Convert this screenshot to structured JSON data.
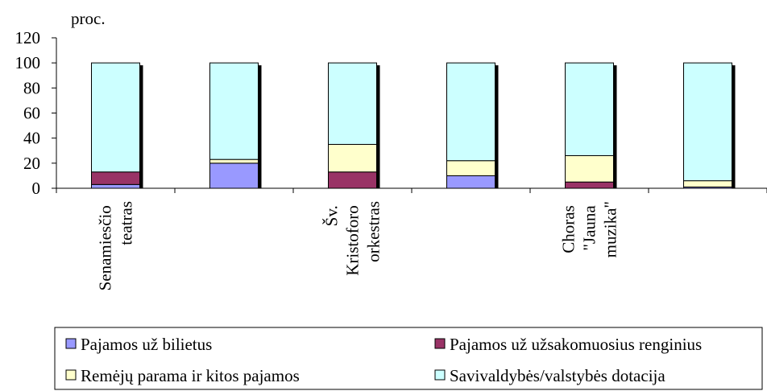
{
  "chart_data": {
    "type": "stacked_bar",
    "ylabel": "proc.",
    "categories": [
      "Senamiesčio teatras",
      null,
      "Šv. Kristoforo orkestras",
      null,
      "Choras \"Jauna muzika\"",
      null
    ],
    "series": [
      {
        "name": "Pajamos už bilietus",
        "color": "#9999ff",
        "values": [
          3,
          20,
          0,
          10,
          0,
          1
        ]
      },
      {
        "name": "Pajamos už užsakomuosius renginius",
        "color": "#993366",
        "values": [
          10,
          0,
          13,
          0,
          5,
          0
        ]
      },
      {
        "name": "Remėjų parama ir kitos pajamos",
        "color": "#ffffcc",
        "values": [
          0,
          3,
          22,
          12,
          21,
          5
        ]
      },
      {
        "name": "Savivaldybės/valstybės dotacija",
        "color": "#ccffff",
        "values": [
          87,
          77,
          65,
          78,
          74,
          94
        ]
      }
    ],
    "ylim": [
      0,
      120
    ],
    "yticks": [
      0,
      20,
      40,
      60,
      80,
      100,
      120
    ]
  }
}
